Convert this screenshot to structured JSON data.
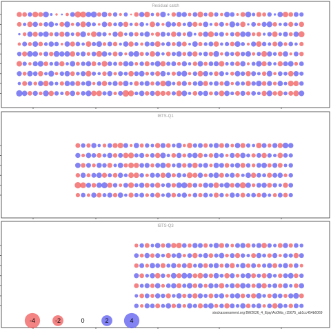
{
  "chart_data": [
    {
      "type": "scatter",
      "subtype": "bubble",
      "title": "Residual catch",
      "colors": {
        "negative": "#f05a5a",
        "positive": "#5a5af0"
      },
      "row_count": 9,
      "col_count": 54,
      "first_col": 0,
      "row_values": [
        [
          -1.5,
          -1.2,
          1.1,
          -1.8,
          -1.3,
          1.9,
          0.4,
          -0.3,
          0.2,
          -0.6,
          1.3,
          -2.1,
          -2.0,
          1.6,
          2.0,
          -1.0,
          1.7,
          -0.8,
          1.1,
          -0.5,
          0.9,
          -0.2,
          -1.2,
          1.5,
          -1.8,
          0.6,
          -0.9,
          1.8,
          0.3,
          -1.1,
          1.6,
          1.4,
          -0.7,
          1.2,
          -1.9,
          0.8,
          -1.5,
          1.0,
          -0.6,
          1.7,
          1.2,
          -0.4,
          -1.3,
          1.9,
          0.7,
          -1.4,
          -0.9,
          1.1,
          0.3,
          1.6,
          -1.7,
          -1.2,
          1.3,
          1.0
        ],
        [
          -1.2,
          0.7,
          -1.6,
          1.5,
          -0.8,
          1.2,
          1.7,
          0.5,
          -1.3,
          1.9,
          -0.6,
          1.1,
          -1.8,
          1.4,
          0.9,
          -0.4,
          1.6,
          -1.1,
          0.8,
          1.3,
          -1.5,
          0.6,
          -0.9,
          1.2,
          0.4,
          -1.7,
          1.0,
          -0.5,
          1.8,
          1.1,
          -1.2,
          0.7,
          1.5,
          -1.4,
          -0.8,
          1.6,
          0.5,
          -1.0,
          1.3,
          -0.6,
          1.9,
          0.9,
          -1.6,
          0.3,
          1.2,
          -0.7,
          1.4,
          1.8,
          -1.1,
          0.6,
          1.0,
          -1.4,
          0.8,
          -1.5
        ],
        [
          0.3,
          -0.8,
          1.6,
          -1.4,
          1.2,
          1.8,
          -0.9,
          1.1,
          -1.5,
          1.4,
          0.7,
          -1.2,
          1.9,
          -0.6,
          -1.8,
          1.3,
          1.0,
          -0.4,
          1.5,
          -1.7,
          0.6,
          1.2,
          -1.0,
          0.9,
          1.7,
          -0.5,
          -1.3,
          1.4,
          0.8,
          -1.6,
          1.1,
          -0.7,
          1.8,
          0.4,
          -1.1,
          1.6,
          -1.9,
          0.9,
          1.3,
          -0.6,
          1.0,
          -1.4,
          1.7,
          1.5,
          -0.8,
          -1.2,
          0.5,
          1.1,
          -1.7,
          0.7,
          1.4,
          -0.9,
          1.6,
          -2.0
        ],
        [
          -0.6,
          1.3,
          -0.9,
          1.7,
          -1.2,
          0.8,
          1.5,
          1.1,
          -0.4,
          1.6,
          -1.4,
          1.2,
          0.6,
          -1.7,
          1.0,
          1.8,
          -0.8,
          1.3,
          -1.1,
          0.5,
          1.6,
          -1.5,
          0.9,
          -0.6,
          1.4,
          1.1,
          -1.8,
          0.7,
          1.2,
          -0.9,
          1.5,
          -1.3,
          0.4,
          1.7,
          -1.0,
          0.8,
          1.3,
          -1.6,
          0.6,
          1.0,
          -1.2,
          1.8,
          0.9,
          -0.5,
          1.4,
          -1.7,
          1.1,
          0.7,
          -1.3,
          1.5,
          -0.8,
          1.2,
          0.6,
          -1.0
        ],
        [
          1.1,
          -1.4,
          1.8,
          1.6,
          -0.7,
          1.3,
          -1.1,
          1.9,
          1.5,
          1.7,
          -1.6,
          0.9,
          1.4,
          -0.8,
          1.2,
          -1.9,
          1.6,
          0.7,
          -1.3,
          1.1,
          -0.5,
          1.5,
          1.8,
          -1.0,
          0.8,
          -1.7,
          1.3,
          0.6,
          -1.2,
          1.0,
          1.6,
          -0.9,
          1.4,
          -1.5,
          0.7,
          1.2,
          -1.1,
          1.9,
          -0.6,
          1.3,
          0.9,
          -1.4,
          1.1,
          1.7,
          -0.7,
          1.0,
          -1.8,
          1.5,
          0.8,
          -1.2,
          1.6,
          -0.5,
          1.3,
          -1.1
        ],
        [
          -1.7,
          1.0,
          -0.6,
          1.4,
          1.8,
          -1.2,
          0.8,
          1.3,
          -1.5,
          0.6,
          1.7,
          -0.9,
          1.1,
          1.5,
          -1.3,
          0.7,
          -1.8,
          1.2,
          0.9,
          -1.0,
          1.6,
          1.4,
          -0.7,
          1.1,
          -1.4,
          0.8,
          1.8,
          -1.6,
          1.0,
          1.3,
          -0.8,
          1.5,
          0.6,
          -1.1,
          1.7,
          -0.9,
          1.2,
          1.4,
          -1.7,
          0.7,
          1.0,
          -1.3,
          1.6,
          -0.5,
          0.9,
          1.8,
          -1.4,
          1.1,
          0.6,
          -1.5,
          1.3,
          1.7,
          -0.8,
          1.2
        ],
        [
          1.4,
          -0.9,
          1.7,
          1.2,
          -1.5,
          0.7,
          1.9,
          -0.6,
          1.1,
          1.6,
          -1.2,
          0.8,
          1.4,
          -1.8,
          1.0,
          0.6,
          -1.1,
          1.5,
          -0.7,
          1.3,
          0.9,
          -1.6,
          1.2,
          1.7,
          -0.8,
          1.0,
          -1.4,
          1.6,
          0.7,
          -1.0,
          1.3,
          1.8,
          -0.6,
          1.1,
          -1.7,
          1.5,
          0.8,
          -1.2,
          1.4,
          0.6,
          -0.9,
          1.7,
          1.1,
          -1.5,
          1.3,
          0.7,
          -1.1,
          1.8,
          -0.6,
          1.2,
          0.9,
          -1.6,
          1.5,
          1.0
        ],
        [
          0.6,
          -1.3,
          1.1,
          -0.8,
          1.5,
          -1.7,
          1.2,
          0.7,
          -1.0,
          1.6,
          1.3,
          -1.4,
          0.9,
          1.8,
          -0.6,
          1.2,
          -1.5,
          0.8,
          1.4,
          -1.1,
          1.7,
          0.6,
          -1.3,
          1.0,
          1.5,
          -0.9,
          1.2,
          -1.8,
          1.9,
          0.7,
          -1.2,
          1.4,
          -0.7,
          1.1,
          1.6,
          -1.4,
          0.8,
          1.3,
          -1.0,
          1.7,
          -0.6,
          1.2,
          0.9,
          -1.5,
          1.1,
          1.8,
          -1.2,
          1.4,
          -0.8,
          1.6,
          0.7,
          -1.8,
          -1.6,
          1.1
        ],
        [
          2.2,
          1.6,
          -1.2,
          1.4,
          -0.8,
          1.9,
          -1.5,
          1.1,
          0.7,
          -1.3,
          1.6,
          -0.9,
          1.2,
          1.8,
          -1.6,
          -1.7,
          1.0,
          1.5,
          -0.7,
          1.3,
          -2.3,
          -1.9,
          0.8,
          1.6,
          -1.1,
          1.4,
          -1.6,
          -1.4,
          -1.2,
          1.0,
          -1.8,
          1.7,
          0.6,
          -1.2,
          1.3,
          1.5,
          -0.9,
          1.1,
          -1.7,
          1.6,
          0.8,
          -1.3,
          1.4,
          -1.0,
          1.2,
          0.7,
          -1.5,
          1.8,
          -1.1,
          -1.6,
          0.9,
          -1.3,
          -1.8,
          1.7
        ]
      ]
    },
    {
      "type": "scatter",
      "subtype": "bubble",
      "title": "IBTS-Q1",
      "colors": {
        "negative": "#f05a5a",
        "positive": "#5a5af0"
      },
      "row_count": 6,
      "col_count": 54,
      "first_col": 11,
      "row_values": [
        [
          -1.3,
          1.1,
          -1.0,
          1.5,
          0.6,
          -0.8,
          1.2,
          -1.4,
          -1.7,
          1.3,
          -0.5,
          1.6,
          -0.9,
          1.1,
          0.7,
          -1.5,
          1.4,
          -1.2,
          0.8,
          1.7,
          -0.6,
          -1.6,
          1.0,
          1.3,
          -1.1,
          0.9,
          1.5,
          -1.3,
          1.2,
          -0.7,
          1.6,
          -1.4,
          1.0,
          0.6,
          -1.7,
          1.3,
          -0.9,
          1.4,
          -1.5,
          1.8,
          1.5
        ],
        [
          1.4,
          -0.7,
          1.6,
          1.2,
          -1.3,
          0.9,
          1.5,
          -1.1,
          1.3,
          -1.6,
          -1.8,
          1.0,
          1.4,
          -0.8,
          1.2,
          -1.5,
          1.7,
          0.7,
          -1.2,
          1.5,
          -0.9,
          1.3,
          1.6,
          -1.4,
          0.8,
          -1.1,
          1.5,
          1.2,
          -0.6,
          1.4,
          -1.3,
          1.6,
          0.9,
          -1.0,
          1.3,
          -1.5,
          1.1,
          0.7,
          -1.6,
          1.2,
          1.0
        ],
        [
          1.6,
          -1.2,
          1.3,
          -0.8,
          1.5,
          1.1,
          -1.4,
          0.7,
          1.6,
          -1.0,
          -1.7,
          -1.5,
          1.2,
          1.4,
          -0.9,
          1.3,
          1.7,
          -1.3,
          0.8,
          1.5,
          -1.1,
          1.2,
          -1.6,
          1.0,
          1.4,
          -0.7,
          1.6,
          1.3,
          -1.2,
          0.9,
          1.5,
          -1.4,
          1.1,
          -0.8,
          1.3,
          1.6,
          -1.0,
          1.4,
          -1.3,
          0.7,
          1.1
        ],
        [
          -1.1,
          1.5,
          -0.9,
          1.3,
          1.6,
          -1.4,
          1.0,
          -1.2,
          1.5,
          0.8,
          -1.7,
          -1.6,
          1.1,
          -0.7,
          1.4,
          1.2,
          -1.5,
          1.6,
          -1.0,
          1.3,
          0.9,
          -1.8,
          -1.4,
          1.5,
          -0.8,
          1.2,
          1.7,
          -1.3,
          1.0,
          1.4,
          -1.1,
          0.7,
          1.6,
          -1.5,
          1.2,
          0.9,
          -1.4,
          1.3,
          1.5,
          -0.8,
          1.1
        ],
        [
          -2.2,
          -1.9,
          1.4,
          -1.2,
          1.6,
          2.0,
          -1.5,
          1.1,
          -0.7,
          1.3,
          -1.8,
          0.9,
          1.5,
          -1.3,
          1.1,
          -1.6,
          0.8,
          1.4,
          -1.1,
          1.7,
          1.9,
          -1.4,
          1.2,
          -0.9,
          1.5,
          1.3,
          -1.7,
          1.0,
          1.8,
          -1.2,
          1.4,
          -2.0,
          1.6,
          -0.8,
          1.3,
          1.5,
          -1.3,
          1.1,
          0.7,
          -1.5,
          1.2
        ],
        [
          -1.0,
          1.2,
          -0.7,
          1.5,
          -1.3,
          0.9,
          1.4,
          -1.1,
          1.6,
          0.6,
          -1.4,
          1.0,
          1.3,
          -0.8,
          1.1,
          -1.5,
          0.7,
          1.4,
          -1.2,
          0.9,
          1.5,
          -0.6,
          1.2,
          -1.0,
          1.3,
          0.8,
          -1.4,
          1.1,
          -0.7,
          1.5,
          1.0,
          -1.3,
          0.9,
          1.2,
          -1.1,
          1.4,
          0.7,
          -0.9,
          1.3,
          -1.2,
          1.0
        ]
      ]
    },
    {
      "type": "scatter",
      "subtype": "bubble",
      "title": "IBTS-Q3",
      "colors": {
        "negative": "#f05a5a",
        "positive": "#5a5af0"
      },
      "row_count": 7,
      "col_count": 54,
      "first_col": 22,
      "row_values": [
        [
          -0.8,
          1.1,
          -1.3,
          0.7,
          1.6,
          -1.0,
          1.4,
          -1.5,
          -1.7,
          1.2,
          -0.9,
          1.5,
          1.3,
          -1.1,
          0.8,
          1.6,
          -1.4,
          1.0,
          -0.7,
          1.3,
          1.5,
          -1.2,
          0.9,
          1.4,
          -1.6,
          1.1,
          0.7,
          -1.3,
          1.5,
          -1.0,
          1.2,
          0.8
        ],
        [
          1.2,
          -0.9,
          1.5,
          -1.1,
          1.3,
          0.8,
          -1.4,
          1.1,
          1.6,
          -0.7,
          1.2,
          -1.5,
          0.9,
          1.4,
          -1.2,
          1.0,
          1.6,
          -0.8,
          1.3,
          -1.4,
          1.1,
          0.7,
          -1.3,
          1.5,
          0.9,
          -1.1,
          1.4,
          -0.6,
          1.2,
          1.0,
          -1.5,
          1.3
        ],
        [
          -1.1,
          1.3,
          -0.8,
          1.6,
          1.2,
          -1.4,
          0.9,
          1.5,
          -1.0,
          1.3,
          -1.6,
          0.8,
          1.4,
          -1.2,
          1.1,
          1.5,
          -0.9,
          1.2,
          -1.5,
          0.7,
          1.6,
          -1.1,
          1.3,
          -0.8,
          1.0,
          1.4,
          -1.3,
          0.9,
          1.5,
          -1.0,
          1.2,
          -0.7
        ],
        [
          1.4,
          -1.2,
          0.8,
          1.5,
          -1.6,
          1.1,
          -0.9,
          1.7,
          -1.4,
          1.8,
          1.5,
          -1.2,
          -1.7,
          1.3,
          -1.1,
          1.6,
          0.9,
          -1.5,
          1.4,
          -0.8,
          1.2,
          1.6,
          -1.3,
          1.0,
          -1.4,
          1.5,
          0.8,
          -1.1,
          1.3,
          1.7,
          -1.2,
          1.1
        ],
        [
          -1.3,
          0.9,
          1.4,
          -1.1,
          1.6,
          -0.8,
          1.2,
          1.5,
          -1.4,
          1.0,
          1.7,
          -1.2,
          1.3,
          -0.9,
          1.5,
          1.1,
          -1.6,
          0.8,
          1.4,
          -1.3,
          1.7,
          1.2,
          -1.0,
          1.6,
          -1.5,
          0.9,
          1.3,
          -1.1,
          1.4,
          0.7,
          -1.2,
          1.5
        ],
        [
          0.7,
          -1.2,
          1.3,
          -0.9,
          1.5,
          1.1,
          -1.4,
          0.8,
          1.6,
          -1.0,
          1.2,
          -1.5,
          1.4,
          0.9,
          -1.3,
          1.1,
          1.5,
          -0.7,
          1.3,
          1.6,
          -1.2,
          1.0,
          -1.4,
          1.7,
          0.8,
          -1.1,
          1.5,
          1.2,
          -0.9,
          1.4,
          1.8,
          -1.3
        ],
        [
          1.1,
          -0.7,
          1.4,
          1.2,
          -1.3,
          0.9,
          1.6,
          -1.1,
          1.3,
          -0.8,
          1.5,
          1.0,
          -1.4,
          1.2,
          1.7,
          -0.9,
          1.1,
          -1.5,
          1.3,
          0.8,
          1.6,
          -1.2,
          1.0,
          1.4,
          -0.7,
          1.2,
          -1.6,
          1.5,
          0.9,
          -1.1,
          1.3,
          1.0
        ]
      ]
    }
  ],
  "legend": {
    "items": [
      {
        "label": "-4",
        "value": -4
      },
      {
        "label": "-2",
        "value": -2
      },
      {
        "label": "0",
        "value": 0
      },
      {
        "label": "2",
        "value": 2
      },
      {
        "label": "4",
        "value": 4
      }
    ]
  },
  "footer": {
    "text": "stockassessment.org BW2026_4_Ejay\\Ao0Ma_r15675_ab1cc454b6069"
  }
}
